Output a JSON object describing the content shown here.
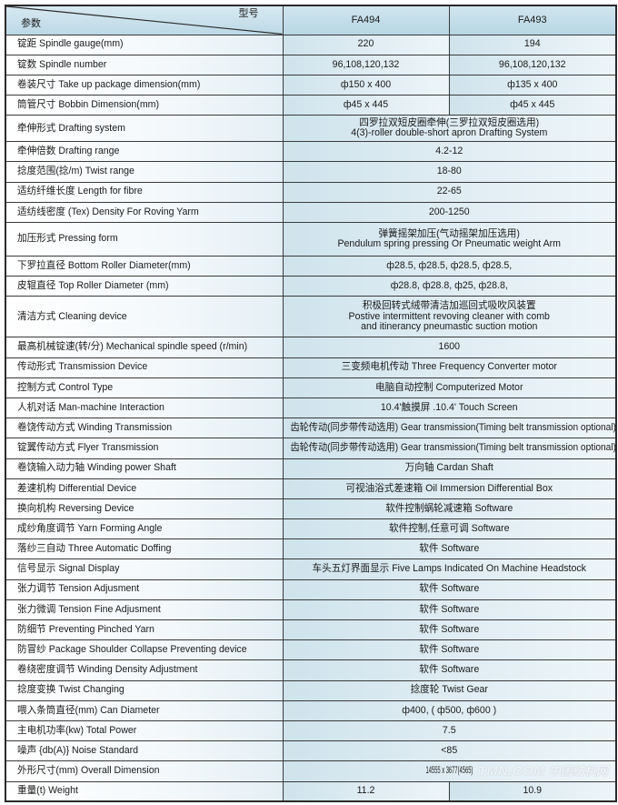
{
  "header": {
    "param_label": "参数",
    "model_label": "型号",
    "models": [
      "FA494",
      "FA493"
    ]
  },
  "rows": [
    {
      "label": "锭距 Spindle gauge(mm)",
      "values": [
        "220",
        "194"
      ]
    },
    {
      "label": "锭数 Spindle number",
      "values": [
        "96,108,120,132",
        "96,108,120,132"
      ]
    },
    {
      "label": "卷装尺寸 Take up package dimension(mm)",
      "values": [
        "ф150 x 400",
        "ф135 x 400"
      ]
    },
    {
      "label": "筒管尺寸 Bobbin Dimension(mm)",
      "values": [
        "ф45 x 445",
        "ф45 x 445"
      ]
    },
    {
      "label": "牵伸形式 Drafting system",
      "values": [
        "四罗拉双短皮圈牵伸(三罗拉双短皮圈选用)\n4(3)-roller double-short apron Drafting System"
      ]
    },
    {
      "label": "牵伸倍数 Drafting range",
      "values": [
        "4.2-12"
      ]
    },
    {
      "label": "捻度范围(捻/m) Twist range",
      "values": [
        "18-80"
      ]
    },
    {
      "label": "适纺纤维长度 Length for fibre",
      "values": [
        "22-65"
      ]
    },
    {
      "label": "适纺线密度 (Tex) Density For Roving Yarm",
      "values": [
        "200-1250"
      ]
    },
    {
      "label": "加压形式 Pressing form",
      "values": [
        "弹簧摇架加压(气动摇架加压选用)\nPendulum spring pressing Or Pneumatic weight Arm"
      ]
    },
    {
      "label": "下罗拉直径 Bottom Roller Diameter(mm)",
      "values": [
        "ф28.5, ф28.5, ф28.5, ф28.5,"
      ]
    },
    {
      "label": "皮辊直径 Top Roller Diameter (mm)",
      "values": [
        "ф28.8, ф28.8, ф25, ф28.8,"
      ]
    },
    {
      "label": "清洁方式 Cleaning device",
      "values": [
        "积极回转式绒带清洁加巡回式吸吹风装置\nPostive intermittent revoving cleaner with comb\nand itinerancy pneumastic suction motion"
      ]
    },
    {
      "label": "最高机械锭速(转/分) Mechanical spindle speed (r/min)",
      "values": [
        "1600"
      ]
    },
    {
      "label": "传动形式 Transmission Device",
      "values": [
        "三变频电机传动 Three Frequency Converter motor"
      ]
    },
    {
      "label": "控制方式 Control Type",
      "values": [
        "电脑自动控制 Computerized Motor"
      ]
    },
    {
      "label": "人机对话 Man-machine Interaction",
      "values": [
        "10.4'触摸屏 .10.4' Touch Screen"
      ]
    },
    {
      "label": "卷饶传动方式 Winding Transmission",
      "values": [
        "齿轮传动(同步带传动选用) Gear transmission(Timing belt transmission optional)"
      ]
    },
    {
      "label": "锭翼传动方式 Flyer Transmission",
      "values": [
        "齿轮传动(同步带传动选用) Gear transmission(Timing belt transmission optional)"
      ]
    },
    {
      "label": "卷饶输入动力轴 Winding power Shaft",
      "values": [
        "万向轴 Cardan Shaft"
      ]
    },
    {
      "label": "差速机构 Differential Device",
      "values": [
        "可视油浴式差速箱 Oil Immersion Differential Box"
      ]
    },
    {
      "label": "换向机构 Reversing Device",
      "values": [
        "软件控制蜗轮减速箱 Software"
      ]
    },
    {
      "label": "成纱角度调节 Yarn Forming Angle",
      "values": [
        "软件控制,任意可调 Software"
      ]
    },
    {
      "label": "落纱三自动 Three Automatic Doffing",
      "values": [
        "软件 Software"
      ]
    },
    {
      "label": "信号显示 Signal Display",
      "values": [
        "车头五灯界面显示 Five Lamps Indicated On Machine Headstock"
      ]
    },
    {
      "label": "张力调节 Tension Adjusment",
      "values": [
        "软件 Software"
      ]
    },
    {
      "label": "张力微调 Tension Fine Adjusment",
      "values": [
        "软件 Software"
      ]
    },
    {
      "label": "防细节 Preventing Pinched Yarn",
      "values": [
        "软件 Software"
      ]
    },
    {
      "label": "防冒纱 Package Shoulder Collapse Preventing device",
      "values": [
        "软件 Software"
      ]
    },
    {
      "label": "卷绕密度调节 Winding Density  Adjustment",
      "values": [
        "软件 Software"
      ]
    },
    {
      "label": "捻度变换 Twist Changing",
      "values": [
        "捻度轮 Twist Gear"
      ]
    },
    {
      "label": "喂入条筒直径(mm) Can Diameter",
      "values": [
        "ф400, ( ф500, ф600 )"
      ]
    },
    {
      "label": "主电机功率(kw) Total Power",
      "values": [
        "7.5"
      ]
    },
    {
      "label": "噪声 {db(A)} Noise Standard",
      "values": [
        "<85"
      ]
    },
    {
      "label": "外形尺寸(mm) Overall Dimension",
      "values": [
        "14555 x 3677(4565)"
      ]
    },
    {
      "label": "重量(t) Weight",
      "values": [
        "11.2",
        "10.9"
      ]
    }
  ],
  "watermark": {
    "line1": "TMN.COM",
    "line2": "中国纺机网"
  },
  "colors": {
    "header_bg": "#bcd9e6",
    "value_bg": "#d8e8f0",
    "border": "#2a2a2a"
  }
}
